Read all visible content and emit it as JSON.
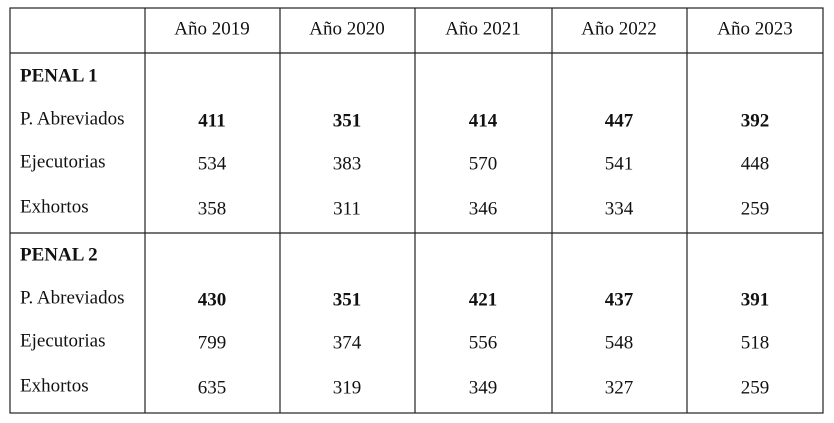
{
  "table": {
    "header": [
      "Año 2019",
      "Año 2020",
      "Año 2021",
      "Año 2022",
      "Año 2023"
    ],
    "groups": [
      {
        "title": "PENAL 1",
        "rows": [
          {
            "label": "P. Abreviados",
            "values": [
              411,
              351,
              414,
              447,
              392
            ]
          },
          {
            "label": "Ejecutorias",
            "values": [
              534,
              383,
              570,
              541,
              448
            ]
          },
          {
            "label": "Exhortos",
            "values": [
              358,
              311,
              346,
              334,
              259
            ]
          }
        ]
      },
      {
        "title": "PENAL 2",
        "rows": [
          {
            "label": "P. Abreviados",
            "values": [
              430,
              351,
              421,
              437,
              391
            ]
          },
          {
            "label": "Ejecutorias",
            "values": [
              799,
              374,
              556,
              548,
              518
            ]
          },
          {
            "label": "Exhortos",
            "values": [
              635,
              319,
              349,
              327,
              259
            ]
          }
        ]
      }
    ]
  }
}
